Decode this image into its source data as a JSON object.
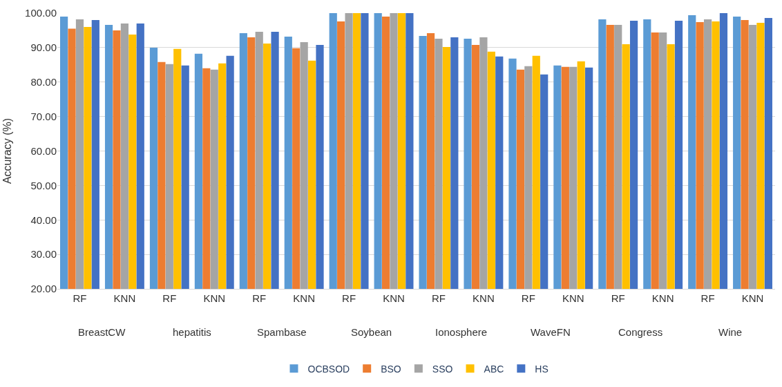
{
  "chart_data": {
    "type": "bar",
    "ylabel": "Accuracy (%)",
    "categories": [
      "RF",
      "KNN",
      "RF",
      "KNN",
      "RF",
      "KNN",
      "RF",
      "KNN",
      "RF",
      "KNN",
      "RF",
      "KNN",
      "RF",
      "KNN",
      "RF",
      "KNN"
    ],
    "annotations": [
      "BreastCW",
      "hepatitis",
      "Spambase",
      "Soybean",
      "Ionosphere",
      "WaveFN",
      "Congress",
      "Wine"
    ],
    "series": [
      {
        "name": "OCBSOD",
        "color": "#5b9bd5",
        "values": [
          99,
          96.6,
          90,
          88.2,
          94.2,
          93.2,
          100,
          100,
          93.4,
          92.6,
          86.8,
          84.8,
          98.2,
          98.2,
          99.4,
          99
        ]
      },
      {
        "name": "BSO",
        "color": "#ed7d31",
        "values": [
          95.5,
          95,
          85.8,
          84,
          93,
          89.8,
          97.6,
          99,
          94.2,
          90.8,
          83.6,
          84.4,
          96.6,
          94.4,
          97.4,
          98
        ]
      },
      {
        "name": "SSO",
        "color": "#a5a5a5",
        "values": [
          98.2,
          97,
          85.2,
          83.6,
          94.6,
          91.6,
          100,
          100,
          92.6,
          93,
          84.6,
          84.4,
          96.6,
          94.4,
          98.2,
          96.6
        ]
      },
      {
        "name": "ABC",
        "color": "#ffc000",
        "values": [
          96,
          93.8,
          89.6,
          85.4,
          91.2,
          86.2,
          100,
          100,
          90.2,
          88.8,
          87.6,
          86,
          91,
          91,
          97.6,
          97.2
        ]
      },
      {
        "name": "HS",
        "color": "#4472c4",
        "values": [
          98,
          97,
          84.8,
          87.6,
          94.6,
          90.8,
          100,
          100,
          93,
          87.4,
          82.2,
          84.2,
          97.8,
          97.8,
          100,
          98.6
        ]
      }
    ],
    "ylim": [
      20,
      100
    ],
    "yticks": [
      {
        "value": 20,
        "label": "20.00"
      },
      {
        "value": 30,
        "label": "30.00"
      },
      {
        "value": 40,
        "label": "40.00"
      },
      {
        "value": 50,
        "label": "50.00"
      },
      {
        "value": 60,
        "label": "60.00"
      },
      {
        "value": 70,
        "label": "70.00"
      },
      {
        "value": 80,
        "label": "80.00"
      },
      {
        "value": 90,
        "label": "90.00"
      },
      {
        "value": 100,
        "label": "100.00"
      }
    ],
    "grid": "y",
    "legend": "bottom"
  }
}
